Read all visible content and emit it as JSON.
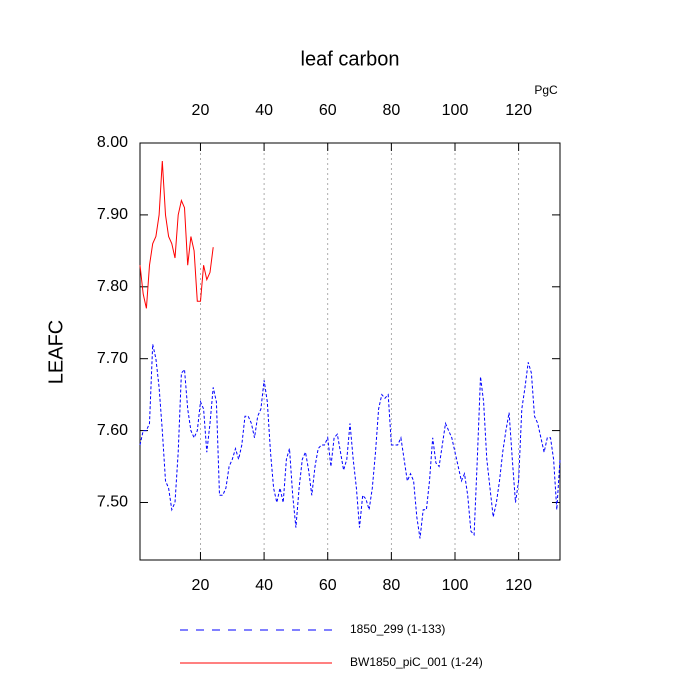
{
  "chart_data": {
    "type": "line",
    "title": "leaf carbon",
    "ylabel": "LEAFC",
    "x2label": "PgC",
    "xlim": [
      1,
      133
    ],
    "ylim": [
      7.42,
      8.0
    ],
    "xticks": [
      20,
      40,
      60,
      80,
      100,
      120
    ],
    "x2ticks": [
      20,
      40,
      60,
      80,
      100,
      120
    ],
    "xtick_color": "#ff0000",
    "x2tick_color": "#0000ff",
    "yticks": [
      {
        "value": 8.0,
        "label": "8.00"
      },
      {
        "value": 7.9,
        "label": "7.90"
      },
      {
        "value": 7.8,
        "label": "7.80"
      },
      {
        "value": 7.7,
        "label": "7.70"
      },
      {
        "value": 7.6,
        "label": "7.60"
      },
      {
        "value": 7.5,
        "label": "7.50"
      }
    ],
    "grid": true,
    "series": [
      {
        "name": "1850_299 (1-133)",
        "color": "#0000ff",
        "dash": true,
        "x": [
          1,
          2,
          3,
          4,
          5,
          6,
          7,
          8,
          9,
          10,
          11,
          12,
          13,
          14,
          15,
          16,
          17,
          18,
          19,
          20,
          21,
          22,
          23,
          24,
          25,
          26,
          27,
          28,
          29,
          30,
          31,
          32,
          33,
          34,
          35,
          36,
          37,
          38,
          39,
          40,
          41,
          42,
          43,
          44,
          45,
          46,
          47,
          48,
          49,
          50,
          51,
          52,
          53,
          54,
          55,
          56,
          57,
          58,
          59,
          60,
          61,
          62,
          63,
          64,
          65,
          66,
          67,
          68,
          69,
          70,
          71,
          72,
          73,
          74,
          75,
          76,
          77,
          78,
          79,
          80,
          81,
          82,
          83,
          84,
          85,
          86,
          87,
          88,
          89,
          90,
          91,
          92,
          93,
          94,
          95,
          96,
          97,
          98,
          99,
          100,
          101,
          102,
          103,
          104,
          105,
          106,
          107,
          108,
          109,
          110,
          111,
          112,
          113,
          114,
          115,
          116,
          117,
          118,
          119,
          120,
          121,
          122,
          123,
          124,
          125,
          126,
          127,
          128,
          129,
          130,
          131,
          132,
          133
        ],
        "values": [
          7.58,
          7.6,
          7.6,
          7.61,
          7.72,
          7.7,
          7.66,
          7.6,
          7.53,
          7.52,
          7.49,
          7.5,
          7.57,
          7.68,
          7.685,
          7.63,
          7.6,
          7.59,
          7.6,
          7.64,
          7.63,
          7.57,
          7.61,
          7.66,
          7.64,
          7.51,
          7.51,
          7.52,
          7.55,
          7.56,
          7.575,
          7.56,
          7.58,
          7.62,
          7.62,
          7.61,
          7.59,
          7.62,
          7.63,
          7.67,
          7.64,
          7.57,
          7.52,
          7.5,
          7.52,
          7.5,
          7.56,
          7.575,
          7.51,
          7.465,
          7.52,
          7.56,
          7.57,
          7.545,
          7.51,
          7.55,
          7.575,
          7.58,
          7.58,
          7.59,
          7.55,
          7.59,
          7.595,
          7.57,
          7.545,
          7.56,
          7.61,
          7.56,
          7.52,
          7.465,
          7.51,
          7.505,
          7.49,
          7.52,
          7.57,
          7.63,
          7.65,
          7.645,
          7.65,
          7.58,
          7.58,
          7.58,
          7.59,
          7.56,
          7.53,
          7.54,
          7.53,
          7.48,
          7.45,
          7.49,
          7.49,
          7.53,
          7.59,
          7.555,
          7.55,
          7.58,
          7.61,
          7.6,
          7.59,
          7.57,
          7.55,
          7.53,
          7.54,
          7.51,
          7.46,
          7.455,
          7.56,
          7.675,
          7.64,
          7.56,
          7.52,
          7.48,
          7.5,
          7.53,
          7.57,
          7.6,
          7.625,
          7.56,
          7.5,
          7.53,
          7.63,
          7.66,
          7.695,
          7.68,
          7.62,
          7.61,
          7.59,
          7.57,
          7.59,
          7.59,
          7.56,
          7.49,
          7.56
        ]
      },
      {
        "name": "BW1850_piC_001 (1-24)",
        "color": "#ff0000",
        "dash": false,
        "x": [
          1,
          2,
          3,
          4,
          5,
          6,
          7,
          8,
          9,
          10,
          11,
          12,
          13,
          14,
          15,
          16,
          17,
          18,
          19,
          20,
          21,
          22,
          23,
          24
        ],
        "values": [
          7.83,
          7.79,
          7.77,
          7.83,
          7.86,
          7.87,
          7.9,
          7.975,
          7.9,
          7.87,
          7.86,
          7.84,
          7.9,
          7.92,
          7.91,
          7.83,
          7.87,
          7.85,
          7.78,
          7.78,
          7.83,
          7.81,
          7.82,
          7.855
        ]
      }
    ]
  }
}
